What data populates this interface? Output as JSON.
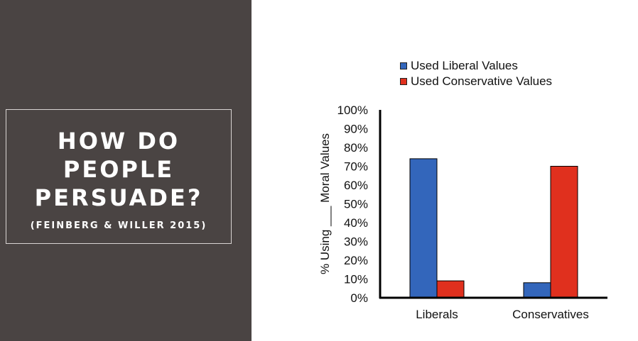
{
  "slide": {
    "title_lines": [
      "HOW DO",
      "PEOPLE",
      "PERSUADE?"
    ],
    "citation": "(FEINBERG & WILLER 2015)"
  },
  "colors": {
    "panel_bg": "#4a4443",
    "liberal_series": "#3366bb",
    "conservative_series": "#e0301e"
  },
  "chart_data": {
    "type": "bar",
    "categories": [
      "Liberals",
      "Conservatives"
    ],
    "series": [
      {
        "name": "Used Liberal Values",
        "color": "#3366bb",
        "values": [
          74,
          8
        ]
      },
      {
        "name": "Used Conservative Values",
        "color": "#e0301e",
        "values": [
          9,
          70
        ]
      }
    ],
    "ylabel": "% Using ___ Moral Values",
    "ylim": [
      0,
      100
    ],
    "yticks": [
      "0%",
      "10%",
      "20%",
      "30%",
      "40%",
      "50%",
      "60%",
      "70%",
      "80%",
      "90%",
      "100%"
    ],
    "grid": false,
    "legend_position": "top"
  }
}
